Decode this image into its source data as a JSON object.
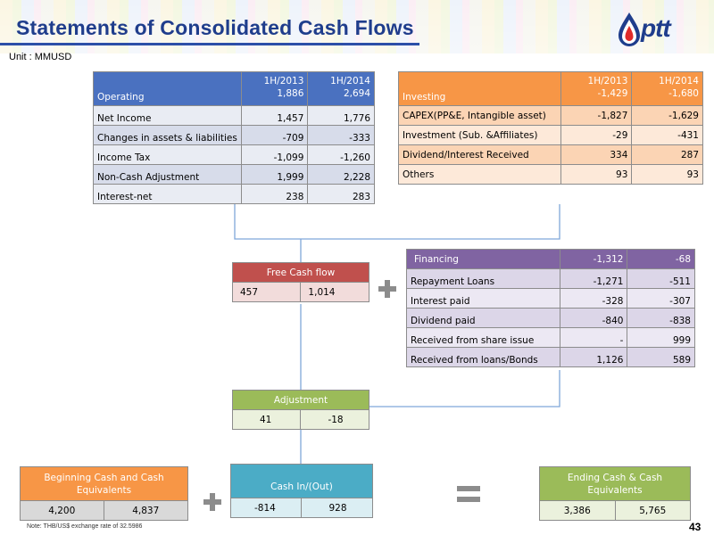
{
  "title": "Statements of Consolidated Cash Flows",
  "unit": "Unit : MMUSD",
  "logo_text": "ptt",
  "note": "Note: THB/US$ exchange rate of 32.5986",
  "page_number": "43",
  "operating": {
    "label": "Operating",
    "col1": "1H/2013",
    "col1_value": "1,886",
    "col2": "1H/2014",
    "col2_value": "2,694",
    "rows": [
      {
        "label": "Net Income",
        "v1": "1,457",
        "v2": "1,776"
      },
      {
        "label": "Changes in assets & liabilities",
        "v1": "-709",
        "v2": "-333"
      },
      {
        "label": "Income Tax",
        "v1": "-1,099",
        "v2": "-1,260"
      },
      {
        "label": "Non-Cash  Adjustment",
        "v1": "1,999",
        "v2": "2,228"
      },
      {
        "label": "Interest-net",
        "v1": "238",
        "v2": "283"
      }
    ]
  },
  "investing": {
    "label": "Investing",
    "col1": "1H/2013",
    "col1_value": "-1,429",
    "col2": "1H/2014",
    "col2_value": "-1,680",
    "rows": [
      {
        "label": "CAPEX(PP&E, Intangible asset)",
        "v1": "-1,827",
        "v2": "-1,629"
      },
      {
        "label": "Investment (Sub. &Affiliates)",
        "v1": "-29",
        "v2": "-431"
      },
      {
        "label": "Dividend/Interest Received",
        "v1": "334",
        "v2": "287"
      },
      {
        "label": "Others",
        "v1": "93",
        "v2": "93"
      }
    ]
  },
  "free_cash_flow": {
    "label": "Free Cash flow",
    "v1": "457",
    "v2": "1,014"
  },
  "financing": {
    "label": "Financing",
    "v1": "-1,312",
    "v2": "-68",
    "rows": [
      {
        "label": "Repayment  Loans",
        "v1": "-1,271",
        "v2": "-511"
      },
      {
        "label": "Interest paid",
        "v1": "-328",
        "v2": "-307"
      },
      {
        "label": "Dividend paid",
        "v1": "-840",
        "v2": "-838"
      },
      {
        "label": "Received from share issue",
        "v1": "-",
        "v2": "999"
      },
      {
        "label": "Received from loans/Bonds",
        "v1": "1,126",
        "v2": "589"
      }
    ]
  },
  "adjustment": {
    "label": "Adjustment",
    "v1": "41",
    "v2": "-18"
  },
  "beginning": {
    "label": "Beginning Cash and Cash Equivalents",
    "v1": "4,200",
    "v2": "4,837"
  },
  "cash_in_out": {
    "label": "Cash In/(Out)",
    "v1": "-814",
    "v2": "928"
  },
  "ending": {
    "label": "Ending Cash & Cash Equivalents",
    "v1": "3,386",
    "v2": "5,765"
  },
  "colors": {
    "title": "#1f3d8c",
    "operating": "#4a71c0",
    "investing": "#f79646",
    "free_cash_flow": "#c0504d",
    "financing": "#8064a2",
    "adjustment": "#9bbb59",
    "cash_in_out": "#4bacc6",
    "connector": "#7fa7d9"
  },
  "icons": [
    "ptt-logo-icon",
    "plus-icon",
    "equals-icon"
  ]
}
